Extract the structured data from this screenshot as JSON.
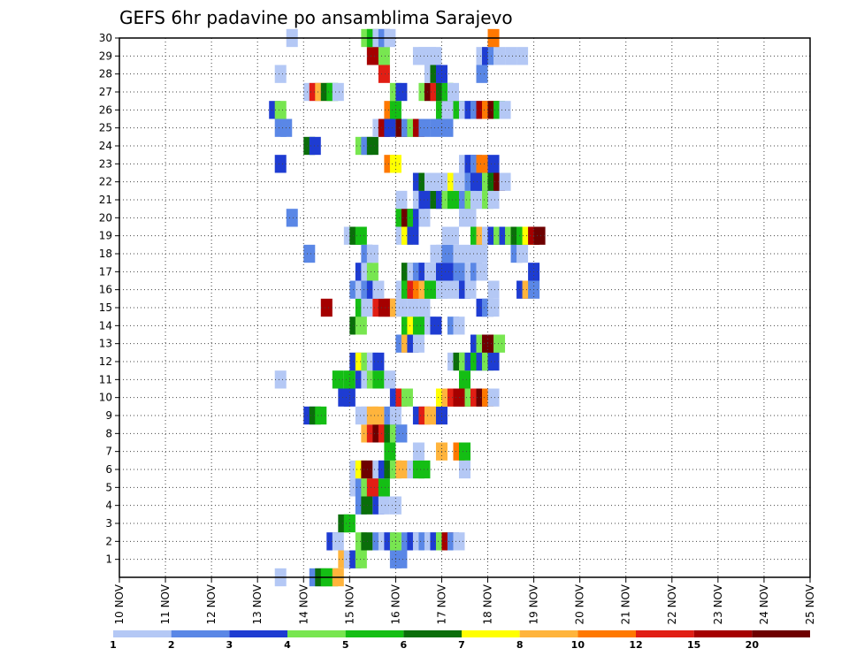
{
  "chart_data": {
    "type": "heatmap",
    "title": "GEFS 6hr padavine po ansamblima Sarajevo",
    "x_tick_labels": [
      "10 NOV",
      "11 NOV",
      "12 NOV",
      "13 NOV",
      "14 NOV",
      "15 NOV",
      "16 NOV",
      "17 NOV",
      "18 NOV",
      "19 NOV",
      "20 NOV",
      "21 NOV",
      "22 NOV",
      "23 NOV",
      "24 NOV",
      "25 NOV"
    ],
    "xlim": [
      0,
      60
    ],
    "steps_per_day": 4,
    "y_ticks": [
      1,
      2,
      3,
      4,
      5,
      6,
      7,
      8,
      9,
      10,
      11,
      12,
      13,
      14,
      15,
      16,
      17,
      18,
      19,
      20,
      21,
      22,
      23,
      24,
      25,
      26,
      27,
      28,
      29,
      30
    ],
    "ylim": [
      0,
      30
    ],
    "grid": true,
    "colorbar": {
      "labels": [
        "1",
        "2",
        "3",
        "4",
        "5",
        "6",
        "7",
        "8",
        "10",
        "12",
        "15",
        "20"
      ],
      "colors": [
        "#b4c8f5",
        "#5a87e6",
        "#1e3cd2",
        "#78e650",
        "#14be14",
        "#0a6e0a",
        "#ffff00",
        "#ffb43c",
        "#ff7800",
        "#e11e14",
        "#a50000",
        "#6e0000"
      ]
    },
    "cells": [
      [
        0,
        13.5,
        0
      ],
      [
        0,
        16.5,
        1
      ],
      [
        0,
        17.0,
        5
      ],
      [
        0,
        17.5,
        4
      ],
      [
        0,
        18.0,
        4
      ],
      [
        0,
        18.5,
        7
      ],
      [
        1,
        19.0,
        7
      ],
      [
        1,
        19.5,
        0
      ],
      [
        1,
        20.0,
        2
      ],
      [
        1,
        20.5,
        3
      ],
      [
        1,
        23.5,
        1
      ],
      [
        1,
        24.0,
        1
      ],
      [
        2,
        18.0,
        2
      ],
      [
        2,
        18.5,
        0
      ],
      [
        2,
        20.5,
        3
      ],
      [
        2,
        21.0,
        5
      ],
      [
        2,
        22.0,
        1
      ],
      [
        2,
        22.5,
        0
      ],
      [
        2,
        23.0,
        2
      ],
      [
        2,
        23.5,
        3
      ],
      [
        2,
        24.5,
        1
      ],
      [
        2,
        25.0,
        2
      ],
      [
        2,
        25.5,
        0
      ],
      [
        2,
        26.0,
        1
      ],
      [
        2,
        26.5,
        0
      ],
      [
        2,
        27.0,
        2
      ],
      [
        2,
        27.5,
        3
      ],
      [
        2,
        28.0,
        10
      ],
      [
        2,
        28.5,
        1
      ],
      [
        2,
        29.0,
        0
      ],
      [
        3,
        19.0,
        5
      ],
      [
        3,
        19.5,
        4
      ],
      [
        4,
        20.5,
        1
      ],
      [
        4,
        21.0,
        5
      ],
      [
        4,
        22.0,
        2
      ],
      [
        4,
        22.5,
        0
      ],
      [
        4,
        23.5,
        0
      ],
      [
        5,
        20.0,
        0
      ],
      [
        5,
        20.5,
        1
      ],
      [
        5,
        21.0,
        3
      ],
      [
        5,
        21.5,
        9
      ],
      [
        5,
        22.0,
        9
      ],
      [
        5,
        22.5,
        4
      ],
      [
        6,
        20.0,
        0
      ],
      [
        6,
        20.5,
        6
      ],
      [
        6,
        21.0,
        11
      ],
      [
        6,
        22.0,
        0
      ],
      [
        6,
        22.5,
        2
      ],
      [
        6,
        23.0,
        5
      ],
      [
        6,
        23.5,
        3
      ],
      [
        6,
        24.0,
        7
      ],
      [
        6,
        25.0,
        0
      ],
      [
        6,
        25.5,
        4
      ],
      [
        6,
        26.0,
        4
      ],
      [
        6,
        29.5,
        0
      ],
      [
        7,
        23.0,
        4
      ],
      [
        7,
        25.5,
        0
      ],
      [
        7,
        27.5,
        7
      ],
      [
        7,
        29.0,
        8
      ],
      [
        7,
        29.5,
        4
      ],
      [
        8,
        21.0,
        7
      ],
      [
        8,
        21.5,
        9
      ],
      [
        8,
        22.0,
        11
      ],
      [
        8,
        22.5,
        9
      ],
      [
        8,
        23.0,
        5
      ],
      [
        8,
        23.5,
        3
      ],
      [
        8,
        24.0,
        1
      ],
      [
        9,
        16.0,
        2
      ],
      [
        9,
        16.5,
        5
      ],
      [
        9,
        17.0,
        4
      ],
      [
        9,
        20.5,
        0
      ],
      [
        9,
        21.0,
        0
      ],
      [
        9,
        21.5,
        7
      ],
      [
        9,
        22.0,
        7
      ],
      [
        9,
        23.0,
        1
      ],
      [
        9,
        23.5,
        0
      ],
      [
        9,
        25.5,
        2
      ],
      [
        9,
        26.0,
        9
      ],
      [
        9,
        26.5,
        7
      ],
      [
        9,
        27.0,
        7
      ],
      [
        9,
        27.5,
        2
      ],
      [
        10,
        19.0,
        2
      ],
      [
        10,
        19.5,
        2
      ],
      [
        10,
        23.5,
        2
      ],
      [
        10,
        24.0,
        9
      ],
      [
        10,
        24.5,
        3
      ],
      [
        10,
        27.5,
        6
      ],
      [
        10,
        28.0,
        7
      ],
      [
        10,
        28.5,
        9
      ],
      [
        10,
        29.0,
        10
      ],
      [
        10,
        29.5,
        10
      ],
      [
        10,
        30.0,
        3
      ],
      [
        10,
        30.5,
        9
      ],
      [
        10,
        31.0,
        11
      ],
      [
        10,
        31.5,
        8
      ],
      [
        10,
        32.0,
        0
      ],
      [
        11,
        13.5,
        0
      ],
      [
        11,
        18.5,
        4
      ],
      [
        11,
        19.5,
        4
      ],
      [
        11,
        20.5,
        2
      ],
      [
        11,
        21.0,
        0
      ],
      [
        11,
        21.5,
        3
      ],
      [
        11,
        22.0,
        4
      ],
      [
        11,
        23.0,
        0
      ],
      [
        11,
        29.5,
        4
      ],
      [
        12,
        20.0,
        2
      ],
      [
        12,
        20.5,
        6
      ],
      [
        12,
        21.0,
        3
      ],
      [
        12,
        21.5,
        0
      ],
      [
        12,
        22.0,
        2
      ],
      [
        12,
        28.5,
        0
      ],
      [
        12,
        29.0,
        5
      ],
      [
        12,
        29.5,
        3
      ],
      [
        12,
        30.0,
        2
      ],
      [
        12,
        30.5,
        4
      ],
      [
        12,
        31.0,
        2
      ],
      [
        12,
        31.5,
        3
      ],
      [
        12,
        32.0,
        2
      ],
      [
        13,
        24.0,
        1
      ],
      [
        13,
        24.5,
        7
      ],
      [
        13,
        25.0,
        2
      ],
      [
        13,
        25.5,
        0
      ],
      [
        13,
        30.5,
        2
      ],
      [
        13,
        31.0,
        3
      ],
      [
        13,
        31.5,
        11
      ],
      [
        13,
        32.0,
        11
      ],
      [
        13,
        32.5,
        3
      ],
      [
        14,
        20.0,
        5
      ],
      [
        14,
        20.5,
        3
      ],
      [
        14,
        24.5,
        4
      ],
      [
        14,
        25.0,
        6
      ],
      [
        14,
        25.5,
        4
      ],
      [
        14,
        26.0,
        4
      ],
      [
        14,
        26.5,
        0
      ],
      [
        14,
        27.0,
        2
      ],
      [
        14,
        28.5,
        1
      ],
      [
        14,
        29.0,
        0
      ],
      [
        15,
        17.5,
        10
      ],
      [
        15,
        20.5,
        4
      ],
      [
        15,
        21.0,
        0
      ],
      [
        15,
        22.0,
        9
      ],
      [
        15,
        22.5,
        10
      ],
      [
        15,
        23.0,
        10
      ],
      [
        15,
        23.5,
        7
      ],
      [
        15,
        24.0,
        0
      ],
      [
        15,
        25.0,
        0
      ],
      [
        15,
        26.0,
        0
      ],
      [
        15,
        31.0,
        2
      ],
      [
        15,
        31.5,
        1
      ],
      [
        15,
        32.0,
        0
      ],
      [
        16,
        20.0,
        1
      ],
      [
        16,
        20.5,
        0
      ],
      [
        16,
        21.0,
        1
      ],
      [
        16,
        21.5,
        2
      ],
      [
        16,
        22.0,
        0
      ],
      [
        16,
        24.0,
        0
      ],
      [
        16,
        24.5,
        4
      ],
      [
        16,
        25.0,
        9
      ],
      [
        16,
        25.5,
        8
      ],
      [
        16,
        26.0,
        7
      ],
      [
        16,
        26.5,
        4
      ],
      [
        16,
        27.0,
        4
      ],
      [
        16,
        27.5,
        0
      ],
      [
        16,
        28.0,
        0
      ],
      [
        16,
        29.0,
        0
      ],
      [
        16,
        29.5,
        2
      ],
      [
        16,
        30.0,
        0
      ],
      [
        16,
        32.0,
        0
      ],
      [
        16,
        34.5,
        2
      ],
      [
        16,
        35.0,
        7
      ],
      [
        16,
        35.5,
        1
      ],
      [
        17,
        20.5,
        2
      ],
      [
        17,
        21.0,
        0
      ],
      [
        17,
        21.5,
        3
      ],
      [
        17,
        24.5,
        5
      ],
      [
        17,
        25.0,
        0
      ],
      [
        17,
        25.5,
        1
      ],
      [
        17,
        26.0,
        2
      ],
      [
        17,
        26.5,
        0
      ],
      [
        17,
        27.5,
        2
      ],
      [
        17,
        28.0,
        2
      ],
      [
        17,
        29.0,
        1
      ],
      [
        17,
        30.0,
        0
      ],
      [
        17,
        30.5,
        1
      ],
      [
        17,
        31.0,
        0
      ],
      [
        17,
        35.5,
        2
      ],
      [
        18,
        16.0,
        1
      ],
      [
        18,
        21.0,
        1
      ],
      [
        18,
        21.5,
        0
      ],
      [
        18,
        27.0,
        0
      ],
      [
        18,
        27.5,
        0
      ],
      [
        18,
        28.0,
        1
      ],
      [
        18,
        29.0,
        0
      ],
      [
        18,
        30.0,
        0
      ],
      [
        18,
        31.0,
        0
      ],
      [
        18,
        34.0,
        1
      ],
      [
        18,
        34.5,
        0
      ],
      [
        19,
        19.5,
        0
      ],
      [
        19,
        20.0,
        5
      ],
      [
        19,
        20.5,
        4
      ],
      [
        19,
        24.0,
        0
      ],
      [
        19,
        24.5,
        6
      ],
      [
        19,
        25.0,
        2
      ],
      [
        19,
        28.0,
        0
      ],
      [
        19,
        28.5,
        0
      ],
      [
        19,
        30.5,
        4
      ],
      [
        19,
        31.0,
        7
      ],
      [
        19,
        31.5,
        0
      ],
      [
        19,
        32.0,
        2
      ],
      [
        19,
        32.5,
        3
      ],
      [
        19,
        33.0,
        2
      ],
      [
        19,
        33.5,
        3
      ],
      [
        19,
        34.0,
        5
      ],
      [
        19,
        34.5,
        4
      ],
      [
        19,
        35.0,
        6
      ],
      [
        19,
        35.5,
        10
      ],
      [
        19,
        36.0,
        11
      ],
      [
        20,
        14.5,
        1
      ],
      [
        20,
        24.0,
        4
      ],
      [
        20,
        24.5,
        11
      ],
      [
        20,
        25.0,
        4
      ],
      [
        20,
        25.5,
        2
      ],
      [
        20,
        26.0,
        0
      ],
      [
        20,
        29.5,
        0
      ],
      [
        20,
        30.0,
        0
      ],
      [
        21,
        24.0,
        0
      ],
      [
        21,
        25.5,
        0
      ],
      [
        21,
        26.0,
        2
      ],
      [
        21,
        27.0,
        5
      ],
      [
        21,
        27.5,
        2
      ],
      [
        21,
        28.0,
        3
      ],
      [
        21,
        28.5,
        4
      ],
      [
        21,
        29.5,
        1
      ],
      [
        21,
        30.0,
        3
      ],
      [
        21,
        30.5,
        0
      ],
      [
        21,
        31.0,
        0
      ],
      [
        21,
        31.5,
        3
      ],
      [
        21,
        32.0,
        0
      ],
      [
        22,
        25.5,
        2
      ],
      [
        22,
        26.0,
        5
      ],
      [
        22,
        26.5,
        0
      ],
      [
        22,
        27.0,
        0
      ],
      [
        22,
        27.5,
        0
      ],
      [
        22,
        28.5,
        6
      ],
      [
        22,
        29.0,
        0
      ],
      [
        22,
        29.5,
        0
      ],
      [
        22,
        30.0,
        1
      ],
      [
        22,
        30.5,
        2
      ],
      [
        22,
        31.0,
        2
      ],
      [
        22,
        31.5,
        3
      ],
      [
        22,
        32.0,
        5
      ],
      [
        22,
        32.5,
        11
      ],
      [
        22,
        33.0,
        0
      ],
      [
        23,
        13.5,
        2
      ],
      [
        23,
        23.0,
        8
      ],
      [
        23,
        23.5,
        6
      ],
      [
        23,
        29.5,
        0
      ],
      [
        23,
        30.0,
        2
      ],
      [
        23,
        30.5,
        1
      ],
      [
        23,
        31.0,
        8
      ],
      [
        23,
        32.0,
        2
      ],
      [
        24,
        16.0,
        5
      ],
      [
        24,
        16.5,
        2
      ],
      [
        24,
        20.5,
        3
      ],
      [
        24,
        21.0,
        1
      ],
      [
        24,
        21.5,
        5
      ],
      [
        25,
        13.5,
        1
      ],
      [
        25,
        14.0,
        1
      ],
      [
        25,
        22.0,
        0
      ],
      [
        25,
        22.5,
        10
      ],
      [
        25,
        23.0,
        2
      ],
      [
        25,
        24.0,
        11
      ],
      [
        25,
        24.5,
        1
      ],
      [
        25,
        25.0,
        3
      ],
      [
        25,
        25.5,
        10
      ],
      [
        25,
        26.0,
        1
      ],
      [
        25,
        27.0,
        1
      ],
      [
        25,
        28.0,
        1
      ],
      [
        26,
        13.0,
        2
      ],
      [
        26,
        13.5,
        3
      ],
      [
        26,
        23.0,
        8
      ],
      [
        26,
        23.5,
        4
      ],
      [
        26,
        27.5,
        4
      ],
      [
        26,
        28.0,
        0
      ],
      [
        26,
        28.5,
        0
      ],
      [
        26,
        29.0,
        4
      ],
      [
        26,
        29.5,
        0
      ],
      [
        26,
        30.0,
        2
      ],
      [
        26,
        30.5,
        1
      ],
      [
        26,
        31.0,
        10
      ],
      [
        26,
        31.5,
        8
      ],
      [
        26,
        32.0,
        11
      ],
      [
        26,
        32.5,
        4
      ],
      [
        26,
        33.0,
        0
      ],
      [
        27,
        16.0,
        0
      ],
      [
        27,
        16.5,
        9
      ],
      [
        27,
        17.0,
        7
      ],
      [
        27,
        17.5,
        5
      ],
      [
        27,
        18.0,
        4
      ],
      [
        27,
        18.5,
        0
      ],
      [
        27,
        23.5,
        3
      ],
      [
        27,
        24.0,
        2
      ],
      [
        27,
        26.0,
        3
      ],
      [
        27,
        26.5,
        11
      ],
      [
        27,
        27.0,
        9
      ],
      [
        27,
        27.5,
        5
      ],
      [
        27,
        28.0,
        4
      ],
      [
        27,
        28.5,
        0
      ],
      [
        28,
        13.5,
        0
      ],
      [
        28,
        22.5,
        9
      ],
      [
        28,
        26.5,
        0
      ],
      [
        28,
        27.0,
        5
      ],
      [
        28,
        27.5,
        2
      ],
      [
        28,
        31.0,
        1
      ],
      [
        29,
        21.5,
        10
      ],
      [
        29,
        22.0,
        10
      ],
      [
        29,
        22.5,
        3
      ],
      [
        29,
        25.5,
        0
      ],
      [
        29,
        26.0,
        0
      ],
      [
        29,
        26.5,
        0
      ],
      [
        29,
        27.0,
        0
      ],
      [
        29,
        31.0,
        0
      ],
      [
        29,
        31.5,
        2
      ],
      [
        29,
        32.0,
        1
      ],
      [
        29,
        32.5,
        0
      ],
      [
        29,
        33.5,
        0
      ],
      [
        29,
        34.5,
        0
      ],
      [
        30,
        14.5,
        0
      ],
      [
        30,
        21.0,
        3
      ],
      [
        30,
        21.5,
        4
      ],
      [
        30,
        22.0,
        0
      ],
      [
        30,
        22.5,
        1
      ],
      [
        30,
        23.0,
        0
      ],
      [
        30,
        32.0,
        8
      ]
    ]
  }
}
